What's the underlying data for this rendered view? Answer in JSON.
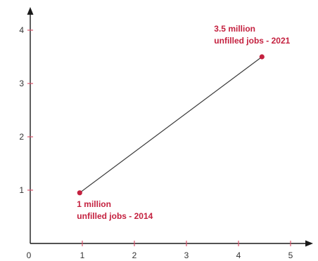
{
  "chart_data": {
    "type": "line",
    "x_ticks": [
      "0",
      "1",
      "2",
      "3",
      "4",
      "5"
    ],
    "y_ticks": [
      "1",
      "2",
      "3",
      "4"
    ],
    "xlim": [
      0,
      5.45
    ],
    "ylim": [
      0,
      4.55
    ],
    "grid": false,
    "series": [
      {
        "points": [
          {
            "x": 0.95,
            "y": 0.95
          },
          {
            "x": 4.45,
            "y": 3.5
          }
        ]
      }
    ],
    "annotations": [
      {
        "line1": "1 million",
        "line2": "unfilled jobs - 2014"
      },
      {
        "line1": "3.5 million",
        "line2": "unfilled jobs - 2021"
      }
    ],
    "colors": {
      "axis": "#1a1a1a",
      "tick_mark": "#d9536b",
      "line": "#3a3a3a",
      "point": "#c4213f",
      "annotation": "#c4213f"
    }
  }
}
